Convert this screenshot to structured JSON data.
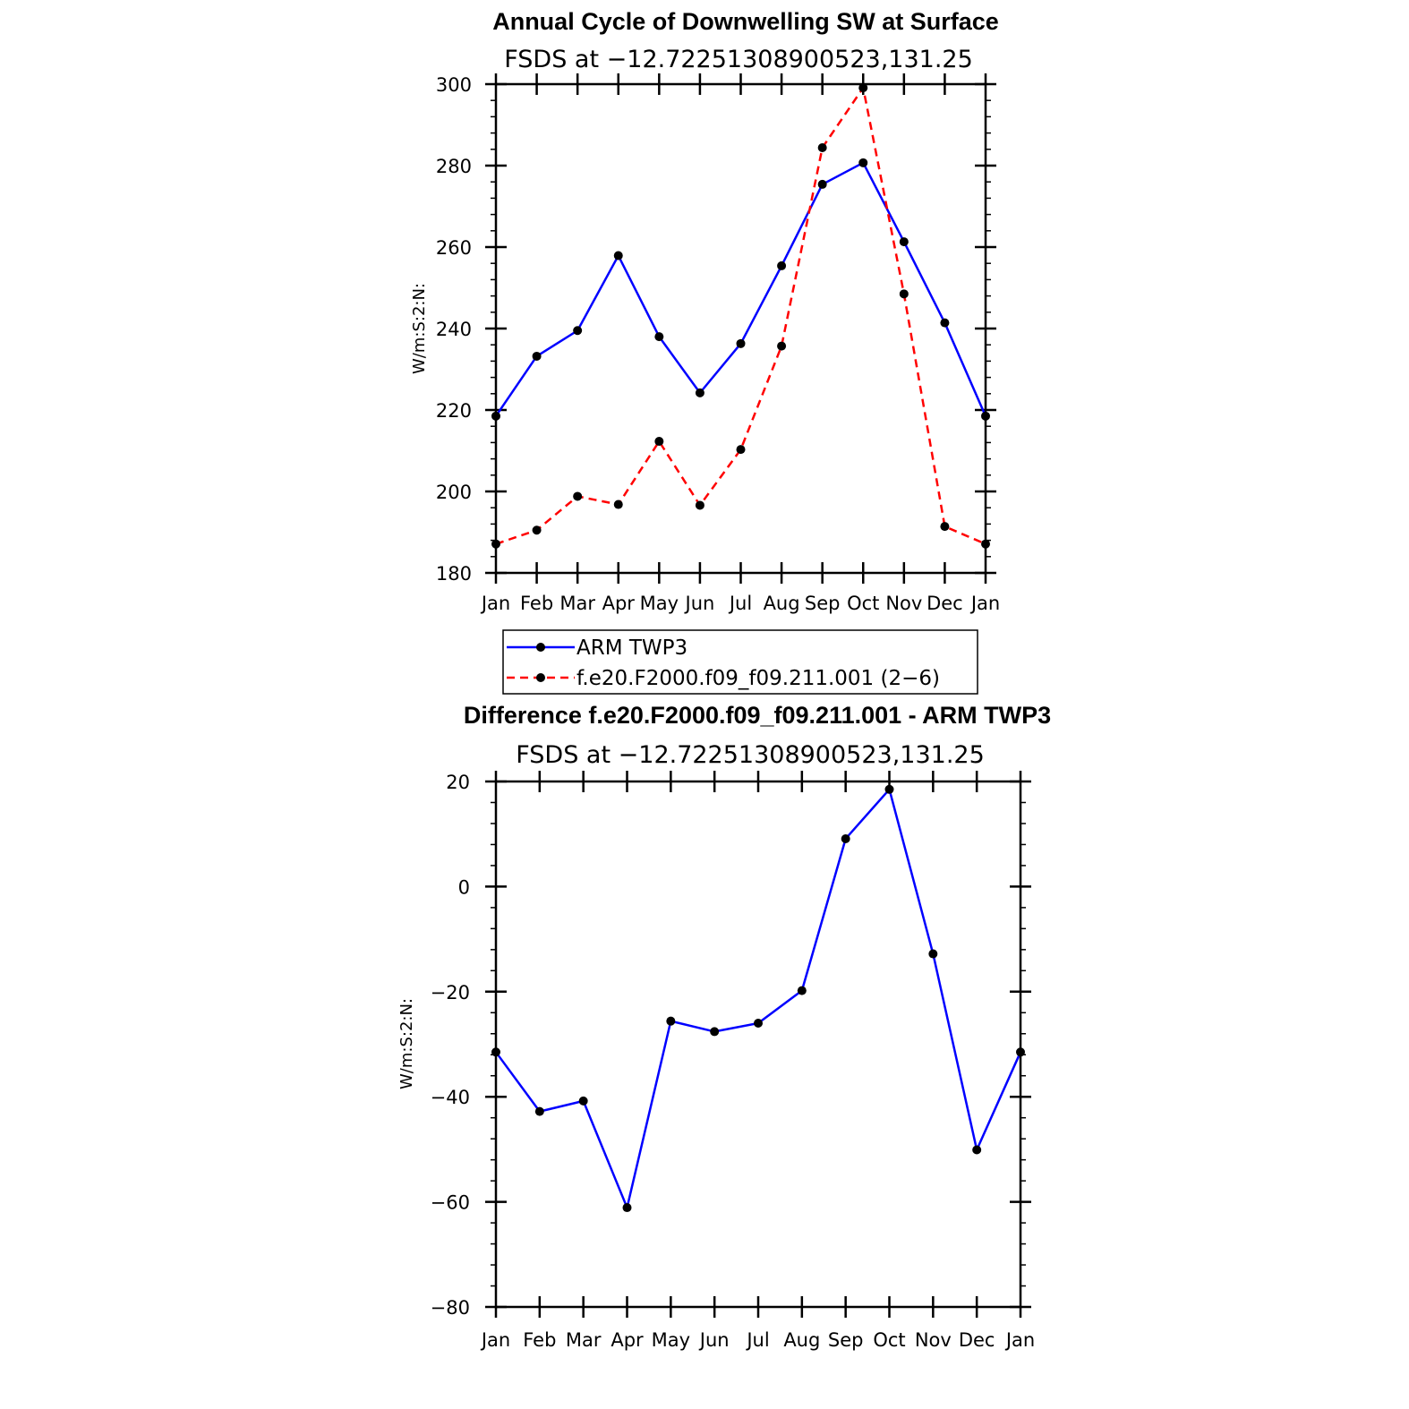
{
  "chart_data": [
    {
      "type": "line",
      "title": "Annual Cycle of Downwelling SW at Surface",
      "subtitle": "FSDS at −12.72251308900523,131.25",
      "ylabel": "W/m:S:2:N:",
      "xlabel": "",
      "categories": [
        "Jan",
        "Feb",
        "Mar",
        "Apr",
        "May",
        "Jun",
        "Jul",
        "Aug",
        "Sep",
        "Oct",
        "Nov",
        "Dec",
        "Jan"
      ],
      "ylim": [
        180,
        300
      ],
      "yticks": [
        180,
        200,
        220,
        240,
        260,
        280,
        300
      ],
      "ytick_labels": [
        "180",
        "200",
        "220",
        "240",
        "260",
        "280",
        "300"
      ],
      "series": [
        {
          "name": "ARM TWP3",
          "color": "#0000ff",
          "dash": "solid",
          "values": [
            218.5,
            233.2,
            239.5,
            257.9,
            238.0,
            224.2,
            236.3,
            255.4,
            275.4,
            280.7,
            261.3,
            241.4,
            218.5
          ]
        },
        {
          "name": "f.e20.F2000.f09_f09.211.001 (2−6)",
          "color": "#ff0000",
          "dash": "dashed",
          "values": [
            187.1,
            190.5,
            198.8,
            196.8,
            212.3,
            196.6,
            210.3,
            235.7,
            284.4,
            299.1,
            248.5,
            191.4,
            187.1
          ]
        }
      ],
      "legend": {
        "position": "bottom",
        "entries": [
          "ARM TWP3",
          "f.e20.F2000.f09_f09.211.001 (2−6)"
        ]
      }
    },
    {
      "type": "line",
      "title": "Difference f.e20.F2000.f09_f09.211.001 - ARM TWP3",
      "subtitle": "FSDS at −12.72251308900523,131.25",
      "ylabel": "W/m:S:2:N:",
      "xlabel": "",
      "categories": [
        "Jan",
        "Feb",
        "Mar",
        "Apr",
        "May",
        "Jun",
        "Jul",
        "Aug",
        "Sep",
        "Oct",
        "Nov",
        "Dec",
        "Jan"
      ],
      "ylim": [
        -80,
        20
      ],
      "yticks": [
        -80,
        -60,
        -40,
        -20,
        0,
        20
      ],
      "ytick_labels": [
        "−80",
        "−60",
        "−40",
        "−20",
        "0",
        "20"
      ],
      "series": [
        {
          "name": "Difference",
          "color": "#0000ff",
          "dash": "solid",
          "values": [
            -31.5,
            -42.8,
            -40.8,
            -61.1,
            -25.6,
            -27.6,
            -26.0,
            -19.8,
            9.1,
            18.5,
            -12.8,
            -50.1,
            -31.5
          ]
        }
      ]
    }
  ]
}
